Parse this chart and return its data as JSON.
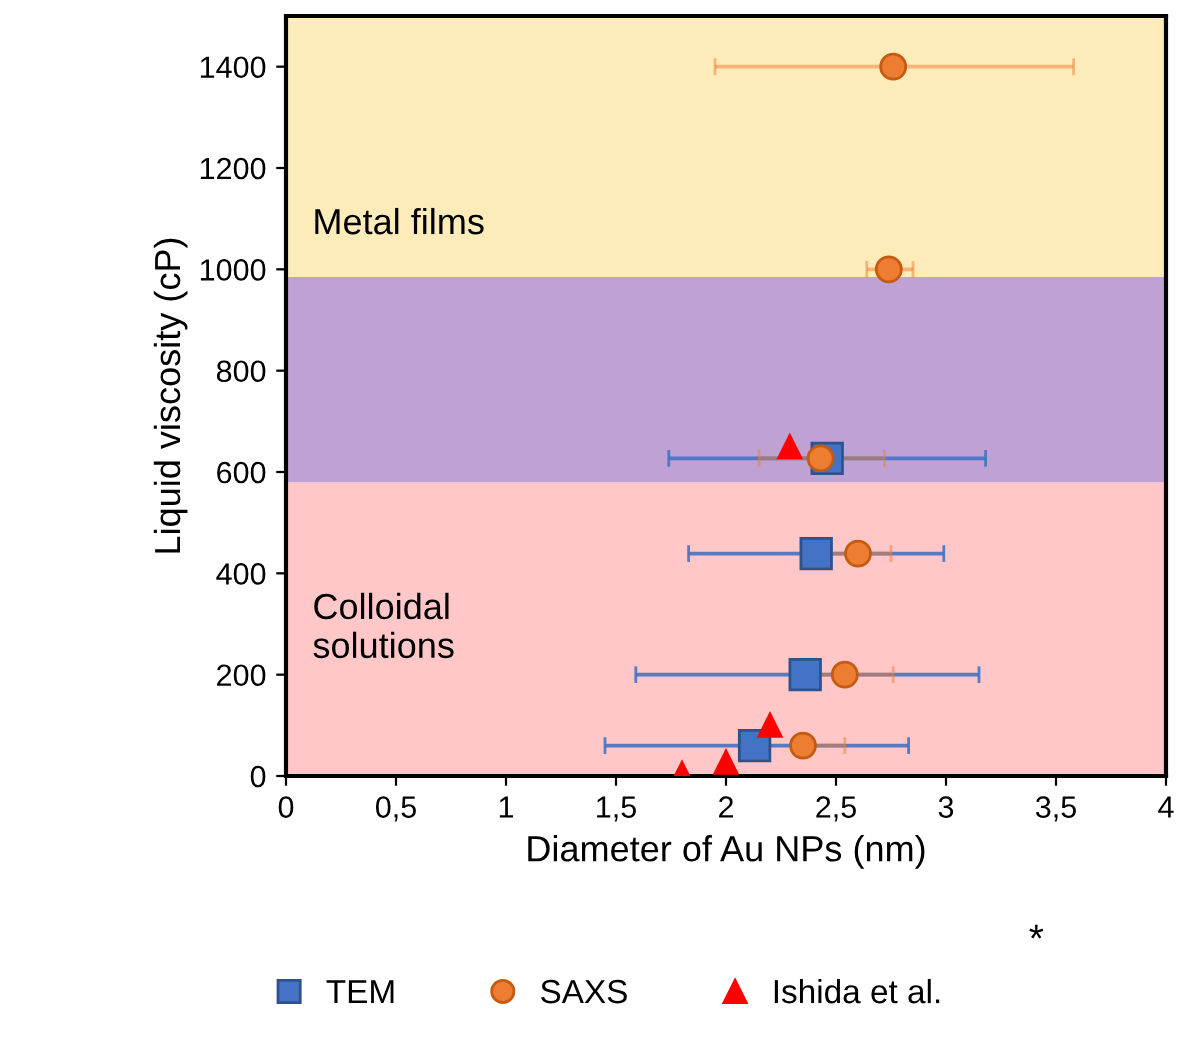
{
  "chart_data": {
    "type": "scatter",
    "xlabel": "Diameter of Au NPs (nm)",
    "ylabel": "Liquid viscosity (cP)",
    "xlim": [
      0,
      4
    ],
    "ylim": [
      0,
      1500
    ],
    "xticks": [
      0,
      {
        "value": 0.5,
        "label": "0,5"
      },
      1,
      {
        "value": 1.5,
        "label": "1,5"
      },
      2,
      {
        "value": 2.5,
        "label": "2,5"
      },
      3,
      {
        "value": 3.5,
        "label": "3,5"
      },
      4
    ],
    "yticks": [
      0,
      200,
      400,
      600,
      800,
      1000,
      1200,
      1400
    ],
    "grid": false,
    "legend": "bottom",
    "bands": [
      {
        "axis": "y",
        "from": 0,
        "to": 580,
        "label": "Colloidal\nsolutions",
        "color": "#ffc7c7"
      },
      {
        "axis": "y",
        "from": 580,
        "to": 985,
        "label": null,
        "color": "#bfa2d3"
      },
      {
        "axis": "y",
        "from": 985,
        "to": 1500,
        "label": "Metal films",
        "color": "#feebba"
      }
    ],
    "series": [
      {
        "name": "TEM",
        "color": "#4472c4",
        "marker": "square",
        "x": [
          2.46,
          2.41,
          2.36,
          2.13
        ],
        "values": [
          627,
          439,
          200,
          60
        ],
        "xerrors": [
          [
            1.74,
            3.18
          ],
          [
            1.83,
            2.99
          ],
          [
            1.59,
            3.15
          ],
          [
            1.45,
            2.83
          ]
        ]
      },
      {
        "name": "SAXS",
        "color": "#ed7d31",
        "marker": "circle",
        "x": [
          2.76,
          2.74,
          2.43,
          2.6,
          2.54,
          2.35
        ],
        "values": [
          1400,
          1000,
          627,
          439,
          200,
          60
        ],
        "xerrors": [
          [
            1.95,
            3.58
          ],
          [
            2.64,
            2.85
          ],
          [
            2.15,
            2.72
          ],
          [
            2.45,
            2.75
          ],
          [
            2.32,
            2.76
          ],
          [
            2.35,
            2.54
          ]
        ]
      },
      {
        "name": "Ishida et al.",
        "color": "#ff0000",
        "marker": "triangle",
        "x": [
          2.29,
          2.2,
          2.0,
          1.8
        ],
        "values": [
          650,
          100,
          27,
          5
        ]
      }
    ],
    "annotations": [
      "*"
    ]
  }
}
